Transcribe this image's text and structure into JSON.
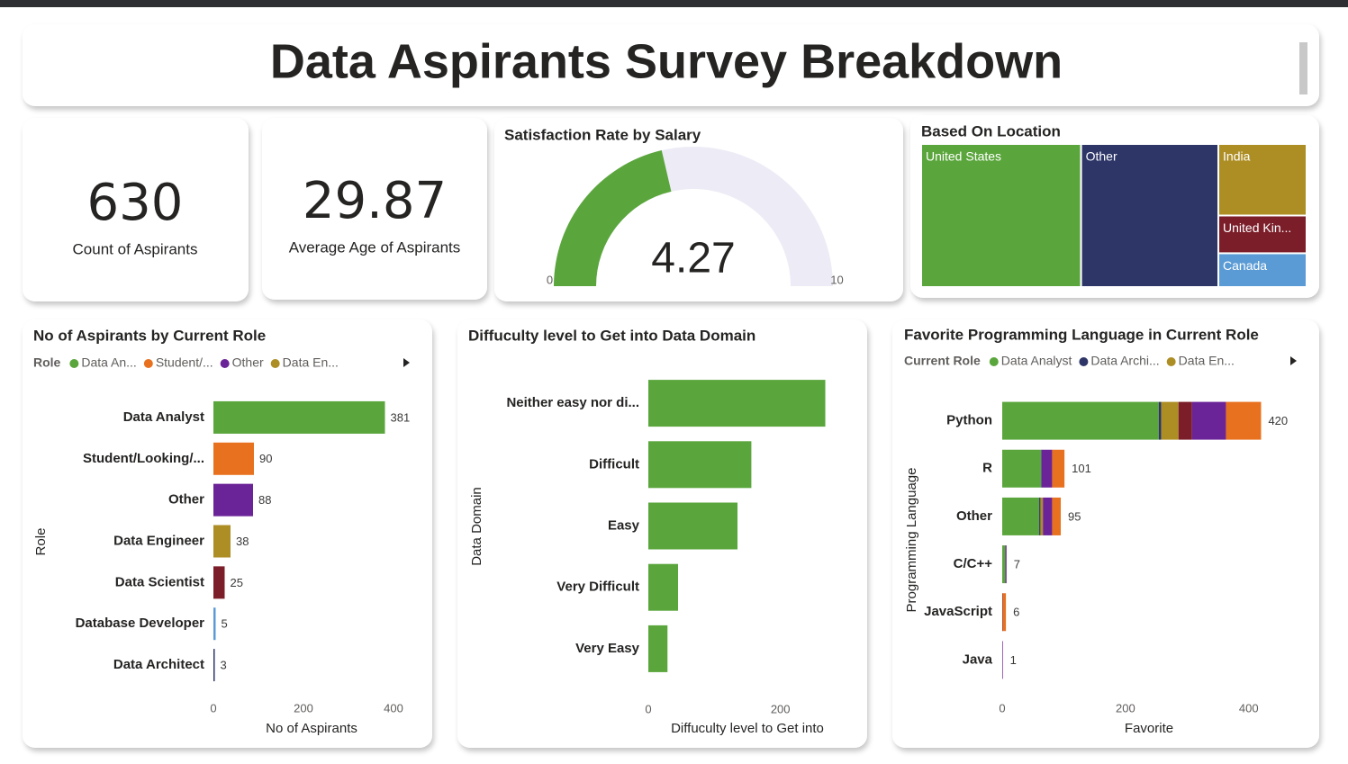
{
  "header": {
    "title": "Data Aspirants Survey Breakdown"
  },
  "kpis": [
    {
      "value": 630,
      "label": "Count of Aspirants"
    },
    {
      "value": 29.87,
      "label": "Average Age of Aspirants"
    }
  ],
  "chart_data": [
    {
      "type": "gauge",
      "title": "Satisfaction Rate by Salary",
      "value": 4.27,
      "ylim": [
        0,
        10
      ],
      "yticks": [
        0,
        10
      ],
      "color": "#5aa63c",
      "track_color": "#edecf6"
    },
    {
      "type": "treemap",
      "title": "Based On Location",
      "categories": [
        "United States",
        "Other",
        "India",
        "United Kin...",
        "Canada"
      ],
      "values": [
        261,
        224,
        72,
        38,
        34
      ],
      "colors": [
        "#5aa63c",
        "#2e3668",
        "#ad8e24",
        "#7b1e2a",
        "#5b9bd5"
      ]
    },
    {
      "type": "bar",
      "orientation": "horizontal",
      "title": "No of Aspirants by Current Role",
      "legend": {
        "title": "Role",
        "entries": [
          "Data An...",
          "Student/...",
          "Other",
          "Data En..."
        ]
      },
      "categories": [
        "Data Analyst",
        "Student/Looking/...",
        "Other",
        "Data Engineer",
        "Data Scientist",
        "Database Developer",
        "Data Architect"
      ],
      "values": [
        381,
        90,
        88,
        38,
        25,
        5,
        3
      ],
      "colors": [
        "#5aa63c",
        "#e8711f",
        "#6b2497",
        "#ad8e24",
        "#7b1e2a",
        "#5b9bd5",
        "#2e3668"
      ],
      "xlim": [
        0,
        400
      ],
      "xticks": [
        0,
        200,
        400
      ],
      "xlabel": "No of Aspirants",
      "ylabel": "Role",
      "data_labels": true
    },
    {
      "type": "bar",
      "orientation": "horizontal",
      "title": "Diffuculty level to Get into Data Domain",
      "categories": [
        "Neither easy nor di...",
        "Difficult",
        "Easy",
        "Very Difficult",
        "Very Easy"
      ],
      "values": [
        268,
        156,
        135,
        45,
        29
      ],
      "color": "#5aa63c",
      "xlim": [
        0,
        300
      ],
      "xticks": [
        0,
        200
      ],
      "xlabel": "Diffuculty level to Get into",
      "ylabel": "Data Domain",
      "data_labels": false
    },
    {
      "type": "stacked_bar",
      "orientation": "horizontal",
      "title": "Favorite Programming Language in Current Role",
      "legend": {
        "title": "Current Role"
      },
      "categories": [
        "Python",
        "R",
        "Other",
        "C/C++",
        "JavaScript",
        "Java"
      ],
      "series": [
        {
          "name": "Data Analyst",
          "color": "#5aa63c",
          "values": [
            254,
            63,
            60,
            5,
            0,
            0
          ]
        },
        {
          "name": "Data Archi...",
          "color": "#2e3668",
          "values": [
            4,
            1,
            2,
            0,
            0,
            0
          ]
        },
        {
          "name": "Data En...",
          "color": "#ad8e24",
          "values": [
            28,
            0,
            4,
            0,
            0,
            0
          ]
        },
        {
          "color": "#7b1e2a",
          "values": [
            22,
            0,
            0,
            0,
            1,
            0
          ]
        },
        {
          "color": "#6b2497",
          "values": [
            55,
            17,
            15,
            2,
            0,
            1
          ]
        },
        {
          "color": "#e8711f",
          "values": [
            57,
            20,
            14,
            0,
            5,
            0
          ]
        }
      ],
      "totals": [
        420,
        101,
        95,
        7,
        6,
        1
      ],
      "xlim": [
        0,
        450
      ],
      "xticks": [
        0,
        200,
        400
      ],
      "xlabel": "Favorite",
      "ylabel": "Programming Language"
    }
  ]
}
